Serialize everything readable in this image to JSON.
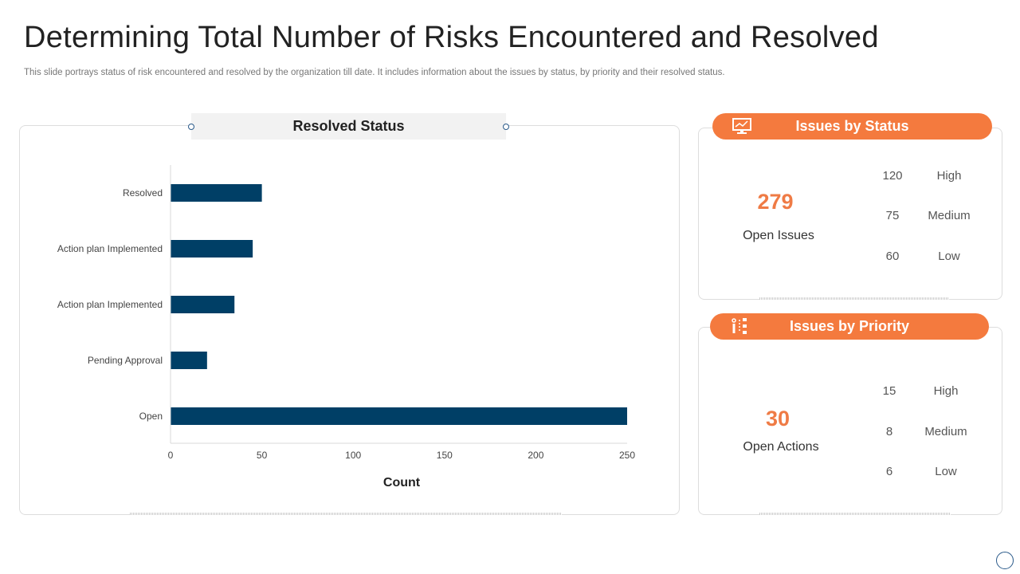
{
  "title": "Determining Total Number of Risks Encountered and Resolved",
  "subtitle": "This slide portrays status of risk encountered and resolved by the organization till date. It includes information about the issues by status, by priority and their resolved status.",
  "chart_panel": {
    "header": "Resolved Status"
  },
  "chart_data": {
    "type": "bar",
    "orientation": "horizontal",
    "title": "Resolved Status",
    "categories": [
      "Resolved",
      "Action plan Implemented",
      "Action plan Implemented",
      "Pending Approval",
      "Open"
    ],
    "values": [
      50,
      45,
      35,
      20,
      250
    ],
    "xlabel": "Count",
    "ylabel": "",
    "xlim": [
      0,
      250
    ],
    "xticks": [
      "0",
      "50",
      "100",
      "150",
      "200",
      "250"
    ],
    "grid": false,
    "bar_color": "#003f66"
  },
  "status_card": {
    "title": "Issues by Status",
    "icon": "monitor-chart-icon",
    "big": "279",
    "big_label": "Open Issues",
    "rows": [
      {
        "value": "120",
        "label": "High"
      },
      {
        "value": "75",
        "label": "Medium"
      },
      {
        "value": "60",
        "label": "Low"
      }
    ]
  },
  "priority_card": {
    "title": "Issues by Priority",
    "icon": "hierarchy-icon",
    "big": "30",
    "big_label": "Open Actions",
    "rows": [
      {
        "value": "15",
        "label": "High"
      },
      {
        "value": "8",
        "label": "Medium"
      },
      {
        "value": "6",
        "label": "Low"
      }
    ]
  },
  "colors": {
    "accent": "#f47a3e",
    "bar": "#003f66",
    "number": "#ef7b45"
  }
}
